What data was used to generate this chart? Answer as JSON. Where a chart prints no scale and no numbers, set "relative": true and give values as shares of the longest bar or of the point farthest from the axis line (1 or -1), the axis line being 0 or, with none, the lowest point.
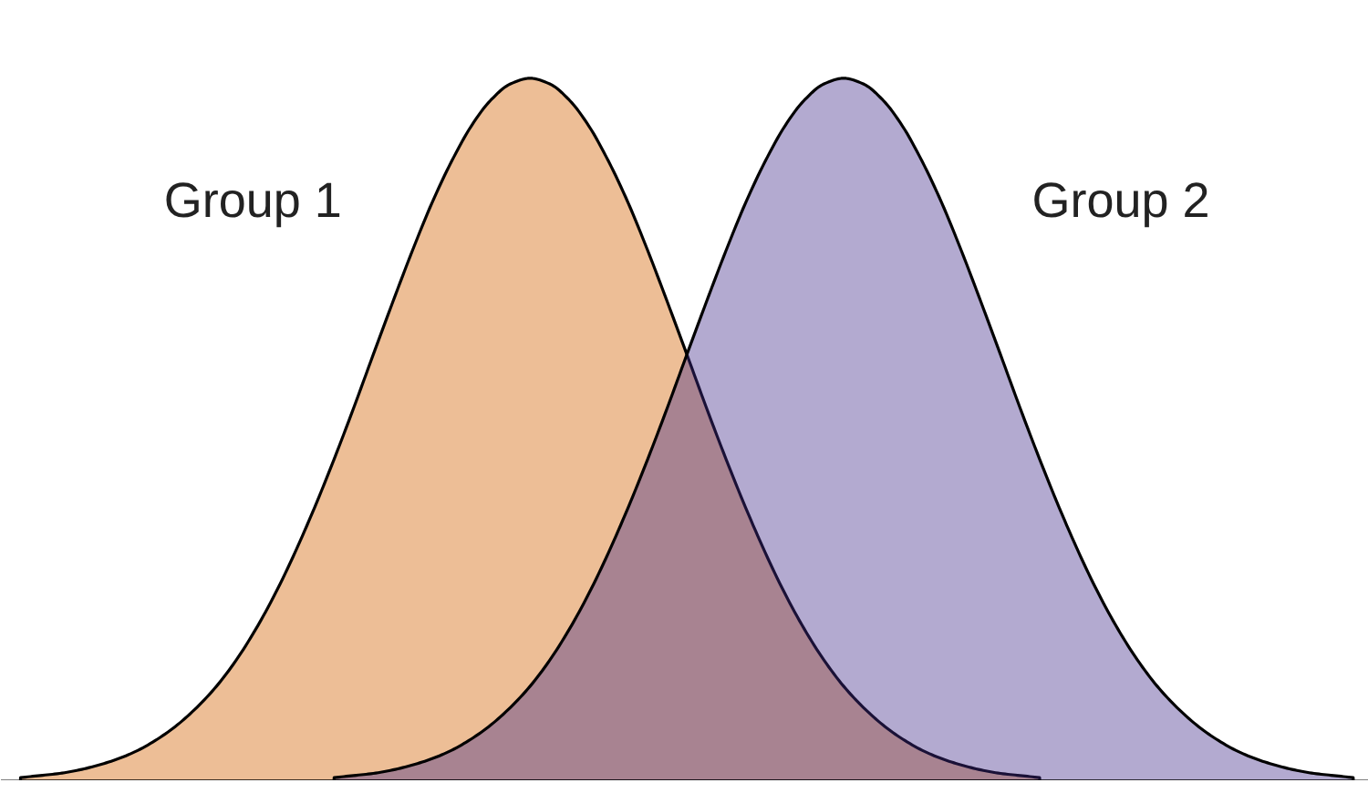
{
  "chart_data": {
    "type": "area",
    "relative": true,
    "grid": false,
    "legend": false,
    "categories": [
      null,
      null,
      null,
      null,
      null,
      null,
      null,
      null,
      null,
      null,
      null,
      null,
      null,
      null,
      null,
      null,
      null,
      null,
      null,
      null,
      null,
      null,
      null,
      null,
      null,
      null,
      null,
      null,
      null,
      null,
      null,
      null,
      null,
      null,
      null,
      null,
      null,
      null,
      null,
      null,
      null,
      null,
      null,
      null,
      null,
      null,
      null,
      null,
      null,
      null,
      null,
      null,
      null,
      null,
      null,
      null,
      null,
      null,
      null,
      null,
      null,
      null,
      null,
      null,
      null,
      null,
      null,
      null,
      null
    ],
    "series": [
      {
        "name": "Group 1",
        "color": "#edbe96",
        "values": [
          0.005,
          0.008,
          0.011,
          0.016,
          0.023,
          0.032,
          0.044,
          0.06,
          0.08,
          0.105,
          0.135,
          0.172,
          0.216,
          0.267,
          0.325,
          0.389,
          0.458,
          0.531,
          0.607,
          0.682,
          0.755,
          0.823,
          0.882,
          0.932,
          0.969,
          0.992,
          1,
          0.992,
          0.969,
          0.932,
          0.882,
          0.823,
          0.755,
          0.682,
          0.607,
          0.531,
          0.458,
          0.389,
          0.325,
          0.267,
          0.216,
          0.172,
          0.135,
          0.105,
          0.08,
          0.06,
          0.044,
          0.032,
          0.023,
          0.016,
          0.011,
          0.008,
          0.005,
          null,
          null,
          null,
          null,
          null,
          null,
          null,
          null,
          null,
          null,
          null,
          null,
          null,
          null,
          null,
          null
        ]
      },
      {
        "name": "Group 2",
        "color": "#b3aad0",
        "values": [
          null,
          null,
          null,
          null,
          null,
          null,
          null,
          null,
          null,
          null,
          null,
          null,
          null,
          null,
          null,
          null,
          0.005,
          0.008,
          0.011,
          0.016,
          0.023,
          0.032,
          0.044,
          0.06,
          0.08,
          0.105,
          0.135,
          0.172,
          0.216,
          0.267,
          0.325,
          0.389,
          0.458,
          0.531,
          0.607,
          0.682,
          0.755,
          0.823,
          0.882,
          0.932,
          0.969,
          0.992,
          1,
          0.992,
          0.969,
          0.932,
          0.882,
          0.823,
          0.755,
          0.682,
          0.607,
          0.531,
          0.458,
          0.389,
          0.325,
          0.267,
          0.216,
          0.172,
          0.135,
          0.105,
          0.08,
          0.06,
          0.044,
          0.032,
          0.023,
          0.016,
          0.011,
          0.008,
          0.005
        ]
      }
    ]
  }
}
